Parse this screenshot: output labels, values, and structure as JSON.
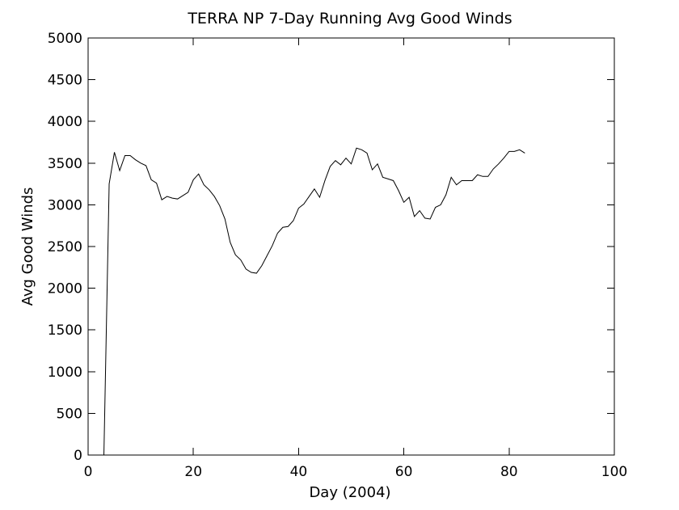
{
  "chart_data": {
    "type": "line",
    "title": "TERRA NP 7-Day Running Avg Good Winds",
    "xlabel": "Day (2004)",
    "ylabel": "Avg Good Winds",
    "xlim": [
      0,
      100
    ],
    "ylim": [
      0,
      5000
    ],
    "x_ticks": [
      0,
      20,
      40,
      60,
      80,
      100
    ],
    "y_ticks": [
      0,
      500,
      1000,
      1500,
      2000,
      2500,
      3000,
      3500,
      4000,
      4500,
      5000
    ],
    "grid": false,
    "legend": "none",
    "line_color": "#000000",
    "series": [
      {
        "x": [
          3,
          4,
          5,
          6,
          7,
          8,
          9,
          10,
          11,
          12,
          13,
          14,
          15,
          16,
          17,
          18,
          19,
          20,
          21,
          22,
          23,
          24,
          25,
          26,
          27,
          28,
          29,
          30,
          31,
          32,
          33,
          34,
          35,
          36,
          37,
          38,
          39,
          40,
          41,
          42,
          43,
          44,
          45,
          46,
          47,
          48,
          49,
          50,
          51,
          52,
          53,
          54,
          55,
          56,
          57,
          58,
          59,
          60,
          61,
          62,
          63,
          64,
          65,
          66,
          67,
          68,
          69,
          70,
          71,
          72,
          73,
          74,
          75,
          76,
          77,
          78,
          79,
          80,
          81,
          82,
          83
        ],
        "y": [
          0,
          3250,
          3630,
          3410,
          3590,
          3590,
          3540,
          3500,
          3470,
          3300,
          3260,
          3060,
          3100,
          3080,
          3070,
          3110,
          3150,
          3300,
          3370,
          3240,
          3180,
          3100,
          2990,
          2830,
          2550,
          2400,
          2340,
          2230,
          2190,
          2180,
          2270,
          2390,
          2510,
          2660,
          2730,
          2740,
          2810,
          2960,
          3010,
          3100,
          3190,
          3090,
          3290,
          3460,
          3530,
          3480,
          3560,
          3490,
          3680,
          3660,
          3620,
          3420,
          3490,
          3330,
          3310,
          3290,
          3170,
          3030,
          3090,
          2860,
          2930,
          2840,
          2830,
          2970,
          3000,
          3120,
          3330,
          3240,
          3290,
          3290,
          3290,
          3360,
          3340,
          3340,
          3430,
          3490,
          3560,
          3640,
          3640,
          3660,
          3620
        ]
      }
    ]
  }
}
